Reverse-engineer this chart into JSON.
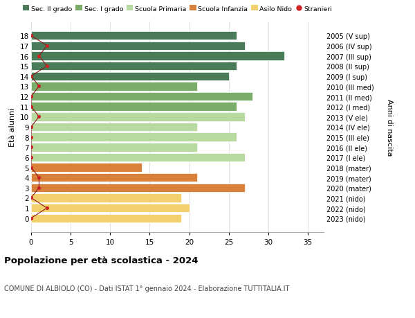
{
  "ages": [
    18,
    17,
    16,
    15,
    14,
    13,
    12,
    11,
    10,
    9,
    8,
    7,
    6,
    5,
    4,
    3,
    2,
    1,
    0
  ],
  "values": [
    26,
    27,
    32,
    26,
    25,
    21,
    28,
    26,
    27,
    21,
    26,
    21,
    27,
    14,
    21,
    27,
    19,
    20,
    19
  ],
  "bar_colors": [
    "#4a7c59",
    "#4a7c59",
    "#4a7c59",
    "#4a7c59",
    "#4a7c59",
    "#7aad6a",
    "#7aad6a",
    "#7aad6a",
    "#b8d9a0",
    "#b8d9a0",
    "#b8d9a0",
    "#b8d9a0",
    "#b8d9a0",
    "#d9813a",
    "#d9813a",
    "#d9813a",
    "#f2d06b",
    "#f2d06b",
    "#f2d06b"
  ],
  "right_labels": [
    "2005 (V sup)",
    "2006 (IV sup)",
    "2007 (III sup)",
    "2008 (II sup)",
    "2009 (I sup)",
    "2010 (III med)",
    "2011 (II med)",
    "2012 (I med)",
    "2013 (V ele)",
    "2014 (IV ele)",
    "2015 (III ele)",
    "2016 (II ele)",
    "2017 (I ele)",
    "2018 (mater)",
    "2019 (mater)",
    "2020 (mater)",
    "2021 (nido)",
    "2022 (nido)",
    "2023 (nido)"
  ],
  "stranieri_values": [
    0,
    2,
    1,
    2,
    0,
    1,
    0,
    0,
    1,
    0,
    0,
    0,
    0,
    0,
    1,
    1,
    0,
    2,
    0
  ],
  "legend_labels": [
    "Sec. II grado",
    "Sec. I grado",
    "Scuola Primaria",
    "Scuola Infanzia",
    "Asilo Nido",
    "Stranieri"
  ],
  "legend_colors": [
    "#4a7c59",
    "#7aad6a",
    "#b8d9a0",
    "#d9813a",
    "#f2d06b",
    "#cc2222"
  ],
  "ylabel": "Età alunni",
  "right_ylabel": "Anni di nascita",
  "title": "Popolazione per età scolastica - 2024",
  "subtitle": "COMUNE DI ALBIOLO (CO) - Dati ISTAT 1° gennaio 2024 - Elaborazione TUTTITALIA.IT",
  "xlim": [
    0,
    37
  ],
  "xticks": [
    0,
    5,
    10,
    15,
    20,
    25,
    30,
    35
  ],
  "background_color": "#ffffff",
  "grid_color": "#dddddd"
}
